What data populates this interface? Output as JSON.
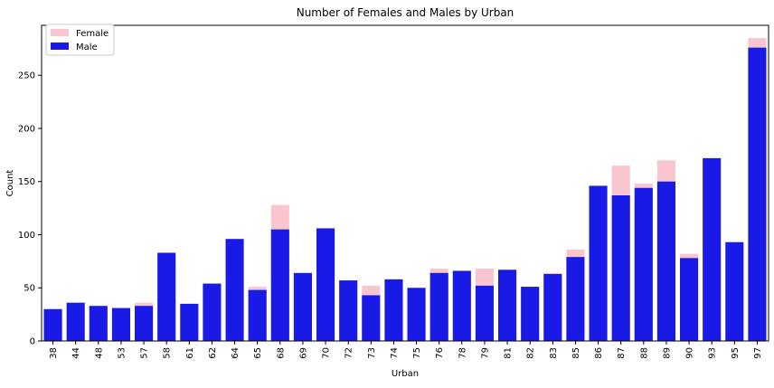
{
  "chart_data": {
    "type": "bar",
    "title": "Number of Females and Males by Urban",
    "xlabel": "Urban",
    "ylabel": "Count",
    "ylim": [
      0,
      297
    ],
    "yticks": [
      0,
      50,
      100,
      150,
      200,
      250
    ],
    "grid": false,
    "legend_position": "top-left",
    "categories": [
      "38",
      "44",
      "48",
      "53",
      "57",
      "58",
      "61",
      "62",
      "64",
      "65",
      "68",
      "69",
      "70",
      "72",
      "73",
      "74",
      "75",
      "76",
      "78",
      "79",
      "81",
      "82",
      "83",
      "85",
      "86",
      "87",
      "88",
      "89",
      "90",
      "93",
      "95",
      "97"
    ],
    "series": [
      {
        "name": "Female",
        "color": "#f9c6cf",
        "values": [
          0,
          0,
          0,
          0,
          36,
          0,
          0,
          0,
          0,
          51,
          128,
          0,
          0,
          0,
          52,
          0,
          0,
          68,
          0,
          68,
          0,
          0,
          64,
          86,
          0,
          165,
          148,
          170,
          82,
          0,
          0,
          285
        ]
      },
      {
        "name": "Male",
        "color": "#1a1ae6",
        "values": [
          30,
          36,
          33,
          31,
          33,
          83,
          35,
          54,
          96,
          48,
          105,
          64,
          106,
          57,
          43,
          58,
          50,
          64,
          66,
          52,
          67,
          51,
          63,
          79,
          146,
          137,
          144,
          150,
          78,
          172,
          93,
          276
        ]
      }
    ]
  }
}
